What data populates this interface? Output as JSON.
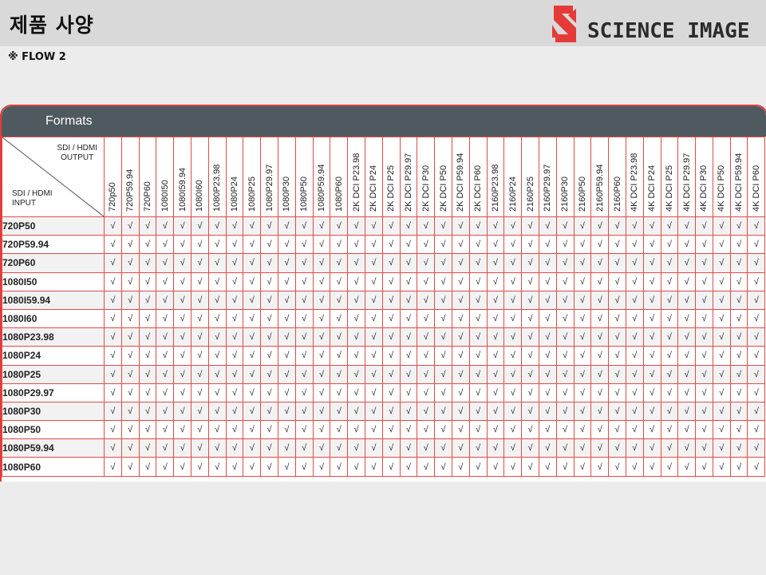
{
  "header": {
    "title": "제품 사양",
    "logo_text": "SCIENCE IMAGE",
    "logo_icon": "science-image-logo-icon"
  },
  "flow_label": "※ FLOW  2",
  "panel": {
    "title": "Formats",
    "corner_output": "SDI / HDMI\nOUTPUT",
    "corner_input": "SDI / HDMI\nINPUT",
    "check_mark": "√",
    "columns": [
      "720p50",
      "720P59.94",
      "720P60",
      "1080I50",
      "1080I59.94",
      "1080I60",
      "1080P23.98",
      "1080P24",
      "1080P25",
      "1080P29.97",
      "1080P30",
      "1080P50",
      "1080P59.94",
      "1080P60",
      "2K DCI P23.98",
      "2K DCI P24",
      "2K DCI P25",
      "2K DCI P29.97",
      "2K DCI P30",
      "2K DCI P50",
      "2K DCI P59.94",
      "2K DCI P60",
      "2160P23.98",
      "2160P24",
      "2160P25",
      "2160P29.97",
      "2160P30",
      "2160P50",
      "2160P59.94",
      "2160P60",
      "4K DCI P23.98",
      "4K DCI P24",
      "4K DCI P25",
      "4K DCI P29.97",
      "4K DCI P30",
      "4K DCI P50",
      "4K DCI P59.94",
      "4K DCI P60"
    ],
    "rows": [
      "720P50",
      "720P59.94",
      "720P60",
      "1080I50",
      "1080I59.94",
      "1080I60",
      "1080P23.98",
      "1080P24",
      "1080P25",
      "1080P29.97",
      "1080P30",
      "1080P50",
      "1080P59.94",
      "1080P60"
    ]
  },
  "colors": {
    "header_bg": "#d9d9d9",
    "panel_head_bg": "#4f5a60",
    "border_red": "#e53b38",
    "logo_red": "#e53b38"
  }
}
